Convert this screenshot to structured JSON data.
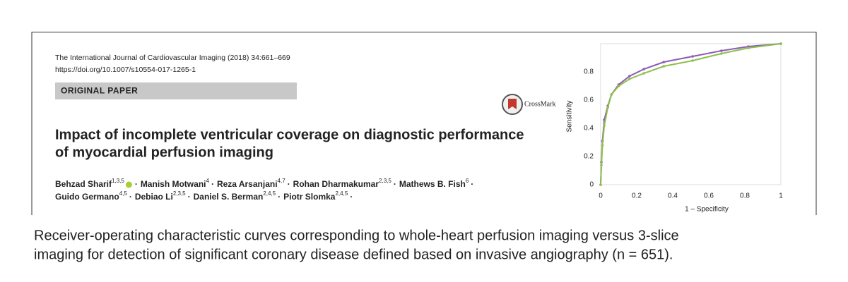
{
  "paper": {
    "journal": "The International Journal of Cardiovascular Imaging (2018) 34:661–669",
    "doi": "https://doi.org/10.1007/s10554-017-1265-1",
    "section": "ORIGINAL PAPER",
    "crossmark": "CrossMark",
    "title_lines": [
      "Impact of incomplete ventricular coverage on diagnostic performance",
      "of myocardial perfusion imaging"
    ],
    "separator": "·",
    "authors": [
      [
        {
          "name": "Behzad Sharif",
          "aff": "1,3,5"
        },
        {
          "name": "Manish Motwani",
          "aff": "4"
        },
        {
          "name": "Reza Arsanjani",
          "aff": "4,7"
        },
        {
          "name": "Rohan Dharmakumar",
          "aff": "2,3,5"
        },
        {
          "name": "Mathews B. Fish",
          "aff": "6"
        }
      ],
      [
        {
          "name": "Guido Germano",
          "aff": "4,5"
        },
        {
          "name": "Debiao Li",
          "aff": "2,3,5"
        },
        {
          "name": "Daniel S. Berman",
          "aff": "2,4,5"
        },
        {
          "name": "Piotr Slomka",
          "aff": "2,4,5"
        }
      ]
    ]
  },
  "chart_data": {
    "type": "line",
    "xlabel": "1 – Specificity",
    "ylabel": "Sensitivity",
    "xlim": [
      0,
      1
    ],
    "ylim": [
      0,
      1
    ],
    "xticks": [
      0,
      0.2,
      0.4,
      0.6,
      0.8,
      1
    ],
    "yticks": [
      0,
      0.2,
      0.4,
      0.6,
      0.8
    ],
    "grid": false,
    "series": [
      {
        "color": "#8e5bb5",
        "x": [
          0,
          0.004,
          0.01,
          0.02,
          0.04,
          0.06,
          0.1,
          0.16,
          0.24,
          0.35,
          0.51,
          0.67,
          0.82,
          1
        ],
        "values": [
          0,
          0.16,
          0.31,
          0.46,
          0.56,
          0.64,
          0.71,
          0.77,
          0.82,
          0.87,
          0.91,
          0.95,
          0.98,
          1
        ]
      },
      {
        "color": "#8dc04b",
        "x": [
          0,
          0.004,
          0.01,
          0.02,
          0.04,
          0.06,
          0.1,
          0.16,
          0.24,
          0.35,
          0.51,
          0.67,
          0.82,
          1
        ],
        "values": [
          0,
          0.14,
          0.28,
          0.42,
          0.55,
          0.64,
          0.7,
          0.75,
          0.79,
          0.84,
          0.88,
          0.93,
          0.97,
          1
        ]
      }
    ]
  },
  "caption": [
    "Receiver-operating characteristic curves corresponding to whole-heart perfusion imaging versus 3-slice",
    "imaging for detection of significant coronary disease defined based on invasive angiography (n = 651)."
  ]
}
